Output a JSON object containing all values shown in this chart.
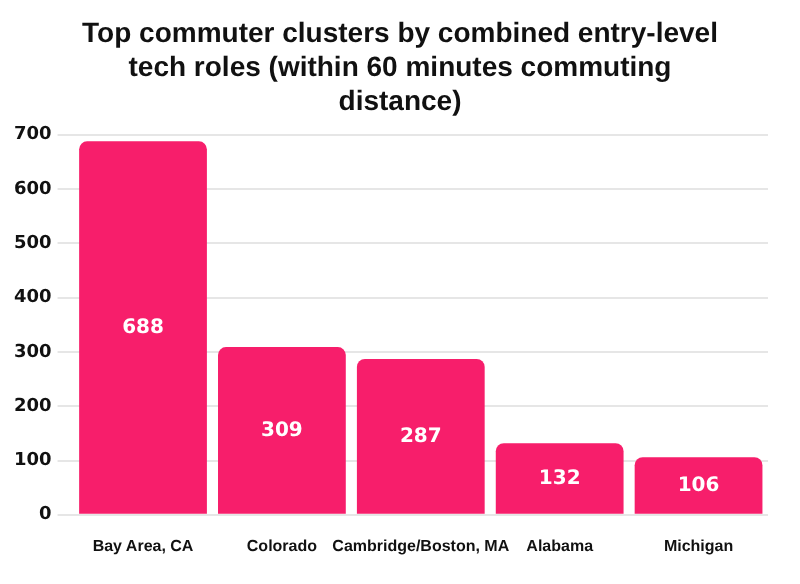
{
  "chart_data": {
    "type": "bar",
    "title": "Top commuter clusters by combined entry-level tech roles (within 60 minutes commuting distance)",
    "categories": [
      "Bay Area, CA",
      "Colorado",
      "Cambridge/Boston, MA",
      "Alabama",
      "Michigan"
    ],
    "values": [
      688,
      309,
      287,
      132,
      106
    ],
    "color": "#f71e6b",
    "ylim": [
      0,
      700
    ],
    "yticks": [
      0,
      100,
      200,
      300,
      400,
      500,
      600,
      700
    ],
    "grid": "y",
    "data_labels": true
  }
}
